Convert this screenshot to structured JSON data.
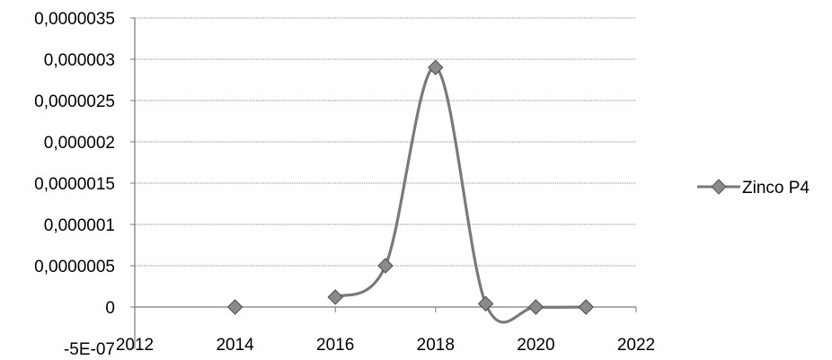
{
  "chart_data": {
    "type": "scatter",
    "title": "",
    "xlabel": "",
    "ylabel": "",
    "xlim": [
      2012,
      2022
    ],
    "ylim": [
      -5e-07,
      3.5e-06
    ],
    "x_ticks": [
      2012,
      2014,
      2016,
      2018,
      2020,
      2022
    ],
    "x_tick_labels": [
      "2012",
      "2014",
      "2016",
      "2018",
      "2020",
      "2022"
    ],
    "y_ticks": [
      -5e-07,
      0,
      5e-07,
      1e-06,
      1.5e-06,
      2e-06,
      2.5e-06,
      3e-06,
      3.5e-06
    ],
    "y_tick_labels": [
      "-5E-07",
      "0",
      "0,0000005",
      "0,000001",
      "0,0000015",
      "0,000002",
      "0,0000025",
      "0,000003",
      "0,0000035"
    ],
    "grid": true,
    "legend_position": "right",
    "series": [
      {
        "name": "Zinco P4",
        "color": "#7a7a7a",
        "marker": "diamond",
        "smooth": true,
        "points": [
          {
            "x": 2014,
            "y": 0
          },
          {
            "x": 2016,
            "y": 1.2e-07
          },
          {
            "x": 2017,
            "y": 5e-07
          },
          {
            "x": 2018,
            "y": 2.9e-06
          },
          {
            "x": 2019,
            "y": 4e-08
          },
          {
            "x": 2020,
            "y": 0
          },
          {
            "x": 2021,
            "y": 0
          }
        ],
        "line_segments": [
          [
            2016,
            2017,
            2018,
            2019,
            2020,
            2021
          ]
        ]
      }
    ]
  }
}
